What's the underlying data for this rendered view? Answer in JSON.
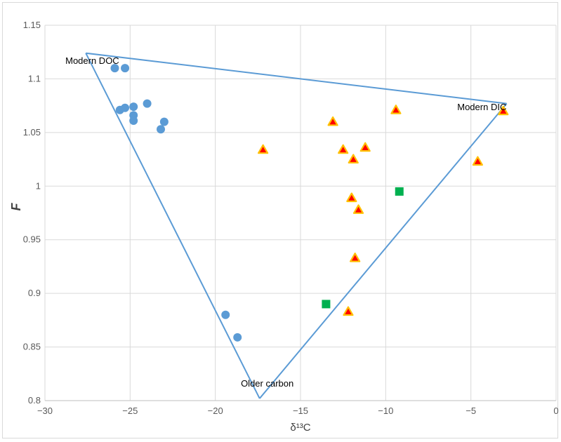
{
  "chart_data": {
    "type": "scatter",
    "xlabel": "δ¹³C",
    "ylabel": "F",
    "xlim": [
      -30,
      0
    ],
    "ylim": [
      0.8,
      1.15
    ],
    "x_ticks": [
      -30,
      -25,
      -20,
      -15,
      -10,
      -5,
      0
    ],
    "y_ticks": [
      0.8,
      0.85,
      0.9,
      0.95,
      1,
      1.05,
      1.1,
      1.15
    ],
    "y_tick_labels": [
      "0.8",
      "0.85",
      "0.9",
      "0.95",
      "1",
      "1.05",
      "1.1",
      "1.15"
    ],
    "grid": true,
    "legend": "none",
    "colors": {
      "circle": "#5b9bd5",
      "triangle_fill": "#ff0000",
      "triangle_edge": "#ffc000",
      "square": "#00b050",
      "lines": "#5b9bd5",
      "grid": "#d9d9d9"
    },
    "series": [
      {
        "marker": "circle",
        "points": [
          [
            -25.9,
            1.11
          ],
          [
            -25.3,
            1.11
          ],
          [
            -25.6,
            1.071
          ],
          [
            -25.3,
            1.073
          ],
          [
            -24.8,
            1.074
          ],
          [
            -24.0,
            1.077
          ],
          [
            -24.8,
            1.066
          ],
          [
            -24.8,
            1.061
          ],
          [
            -23.0,
            1.06
          ],
          [
            -23.2,
            1.053
          ],
          [
            -19.4,
            0.88
          ],
          [
            -18.7,
            0.859
          ]
        ]
      },
      {
        "marker": "triangle",
        "points": [
          [
            -17.2,
            1.034
          ],
          [
            -13.1,
            1.06
          ],
          [
            -12.5,
            1.034
          ],
          [
            -11.9,
            1.025
          ],
          [
            -11.2,
            1.036
          ],
          [
            -9.4,
            1.071
          ],
          [
            -3.1,
            1.07
          ],
          [
            -4.6,
            1.023
          ],
          [
            -12.0,
            0.989
          ],
          [
            -11.6,
            0.978
          ],
          [
            -11.8,
            0.933
          ],
          [
            -12.2,
            0.883
          ]
        ]
      },
      {
        "marker": "square",
        "points": [
          [
            -9.2,
            0.995
          ],
          [
            -13.5,
            0.89
          ]
        ]
      }
    ],
    "mixing_lines": [
      {
        "from": [
          -27.6,
          1.124
        ],
        "to": [
          -2.9,
          1.077
        ]
      },
      {
        "from": [
          -27.6,
          1.124
        ],
        "to": [
          -17.4,
          0.802
        ]
      },
      {
        "from": [
          -2.9,
          1.077
        ],
        "to": [
          -17.4,
          0.802
        ]
      }
    ],
    "annotations": [
      {
        "text": "Modern DOC",
        "at": [
          -28.8,
          1.114
        ]
      },
      {
        "text": "Modern DIC",
        "at": [
          -5.8,
          1.071
        ]
      },
      {
        "text": "Older carbon",
        "at": [
          -18.5,
          0.813
        ]
      }
    ]
  }
}
